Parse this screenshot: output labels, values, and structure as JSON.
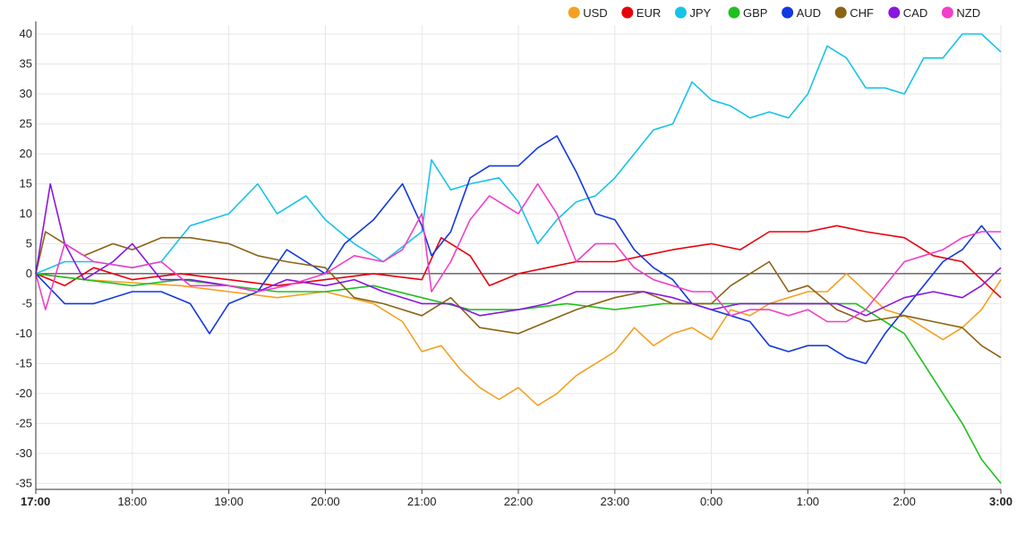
{
  "chart_data": {
    "type": "line",
    "title": "",
    "xlabel": "",
    "ylabel": "",
    "ylim": [
      -36,
      41.5
    ],
    "y_ticks": [
      40,
      35,
      30,
      25,
      20,
      15,
      10,
      5,
      0,
      -5,
      -10,
      -15,
      -20,
      -25,
      -30,
      -35
    ],
    "x_ticks": [
      {
        "label": "17:00",
        "h": 0,
        "bold": true
      },
      {
        "label": "18:00",
        "h": 1,
        "bold": false
      },
      {
        "label": "19:00",
        "h": 2,
        "bold": false
      },
      {
        "label": "20:00",
        "h": 3,
        "bold": false
      },
      {
        "label": "21:00",
        "h": 4,
        "bold": false
      },
      {
        "label": "22:00",
        "h": 5,
        "bold": false
      },
      {
        "label": "23:00",
        "h": 6,
        "bold": false
      },
      {
        "label": "0:00",
        "h": 7,
        "bold": false
      },
      {
        "label": "1:00",
        "h": 8,
        "bold": false
      },
      {
        "label": "2:00",
        "h": 9,
        "bold": false
      },
      {
        "label": "3:00",
        "h": 10,
        "bold": true
      }
    ],
    "grid": true,
    "legend_position": "top-right",
    "series": [
      {
        "name": "USD",
        "color": "#f5a020",
        "x": [
          0,
          0.5,
          1,
          1.5,
          2,
          2.5,
          3,
          3.5,
          3.8,
          4.0,
          4.2,
          4.4,
          4.6,
          4.8,
          5.0,
          5.2,
          5.4,
          5.6,
          5.8,
          6.0,
          6.2,
          6.4,
          6.6,
          6.8,
          7.0,
          7.2,
          7.4,
          7.6,
          7.8,
          8.0,
          8.2,
          8.4,
          8.6,
          8.8,
          9.0,
          9.2,
          9.4,
          9.6,
          9.8,
          10.0
        ],
        "values": [
          0,
          -1,
          -1.5,
          -2,
          -3,
          -4,
          -3,
          -5,
          -8,
          -13,
          -12,
          -16,
          -19,
          -21,
          -19,
          -22,
          -20,
          -17,
          -15,
          -13,
          -9,
          -12,
          -10,
          -9,
          -11,
          -6,
          -7,
          -5,
          -4,
          -3,
          -3,
          0,
          -3,
          -6,
          -7,
          -9,
          -11,
          -9,
          -6,
          -1
        ]
      },
      {
        "name": "EUR",
        "color": "#e8000b",
        "x": [
          0,
          0.3,
          0.6,
          1,
          1.5,
          2,
          2.5,
          3,
          3.5,
          4.0,
          4.2,
          4.5,
          4.7,
          5.0,
          5.3,
          5.6,
          6.0,
          6.3,
          6.6,
          7.0,
          7.3,
          7.6,
          8.0,
          8.3,
          8.6,
          9.0,
          9.3,
          9.6,
          9.8,
          10.0
        ],
        "values": [
          0,
          -2,
          1,
          -1,
          0,
          -1,
          -2,
          -1,
          0,
          -1,
          6,
          3,
          -2,
          0,
          1,
          2,
          2,
          3,
          4,
          5,
          4,
          7,
          7,
          8,
          7,
          6,
          3,
          2,
          -1,
          -4
        ]
      },
      {
        "name": "JPY",
        "color": "#17c3e8",
        "x": [
          0,
          0.3,
          0.6,
          1,
          1.3,
          1.6,
          2.0,
          2.3,
          2.5,
          2.8,
          3.0,
          3.3,
          3.6,
          4.0,
          4.1,
          4.3,
          4.5,
          4.8,
          5.0,
          5.2,
          5.4,
          5.6,
          5.8,
          6.0,
          6.2,
          6.4,
          6.6,
          6.8,
          7.0,
          7.2,
          7.4,
          7.6,
          7.8,
          8.0,
          8.2,
          8.4,
          8.6,
          8.8,
          9.0,
          9.2,
          9.4,
          9.6,
          9.8,
          10.0
        ],
        "values": [
          0,
          2,
          2,
          1,
          2,
          8,
          10,
          15,
          10,
          13,
          9,
          5,
          2,
          7,
          19,
          14,
          15,
          16,
          12,
          5,
          9,
          12,
          13,
          16,
          20,
          24,
          25,
          32,
          29,
          28,
          26,
          27,
          26,
          30,
          38,
          36,
          31,
          31,
          30,
          36,
          36,
          40,
          40,
          37
        ]
      },
      {
        "name": "GBP",
        "color": "#1fc11f",
        "x": [
          0,
          0.5,
          1,
          1.5,
          2,
          2.5,
          3,
          3.5,
          4.0,
          4.5,
          5.0,
          5.5,
          6.0,
          6.5,
          7.0,
          7.5,
          8.0,
          8.5,
          9.0,
          9.2,
          9.4,
          9.6,
          9.8,
          10.0
        ],
        "values": [
          0,
          -1,
          -2,
          -1,
          -2,
          -3,
          -3,
          -2,
          -4,
          -6,
          -6,
          -5,
          -6,
          -5,
          -5,
          -5,
          -5,
          -5,
          -10,
          -15,
          -20,
          -25,
          -31,
          -35
        ]
      },
      {
        "name": "AUD",
        "color": "#1238e0",
        "x": [
          0,
          0.3,
          0.6,
          1,
          1.3,
          1.6,
          1.8,
          2.0,
          2.3,
          2.6,
          2.8,
          3.0,
          3.2,
          3.5,
          3.8,
          4.0,
          4.1,
          4.3,
          4.5,
          4.7,
          5.0,
          5.2,
          5.4,
          5.6,
          5.8,
          6.0,
          6.2,
          6.4,
          6.6,
          6.8,
          7.0,
          7.2,
          7.4,
          7.6,
          7.8,
          8.0,
          8.2,
          8.4,
          8.6,
          8.8,
          9.0,
          9.2,
          9.4,
          9.6,
          9.8,
          10.0
        ],
        "values": [
          0,
          -5,
          -5,
          -3,
          -3,
          -5,
          -10,
          -5,
          -3,
          4,
          2,
          0,
          5,
          9,
          15,
          8,
          3,
          7,
          16,
          18,
          18,
          21,
          23,
          17,
          10,
          9,
          4,
          1,
          -1,
          -5,
          -6,
          -7,
          -8,
          -12,
          -13,
          -12,
          -12,
          -14,
          -15,
          -10,
          -6,
          -2,
          2,
          4,
          8,
          4
        ]
      },
      {
        "name": "CHF",
        "color": "#8c6312",
        "x": [
          0,
          0.1,
          0.3,
          0.5,
          0.8,
          1.0,
          1.3,
          1.6,
          2.0,
          2.3,
          2.6,
          3.0,
          3.3,
          3.6,
          4.0,
          4.3,
          4.6,
          5.0,
          5.3,
          5.6,
          6.0,
          6.3,
          6.6,
          7.0,
          7.2,
          7.4,
          7.6,
          7.8,
          8.0,
          8.3,
          8.6,
          9.0,
          9.3,
          9.6,
          9.8,
          10.0
        ],
        "values": [
          0,
          7,
          5,
          3,
          5,
          4,
          6,
          6,
          5,
          3,
          2,
          1,
          -4,
          -5,
          -7,
          -4,
          -9,
          -10,
          -8,
          -6,
          -4,
          -3,
          -5,
          -5,
          -2,
          0,
          2,
          -3,
          -2,
          -6,
          -8,
          -7,
          -8,
          -9,
          -12,
          -14
        ]
      },
      {
        "name": "CAD",
        "color": "#8a15e0",
        "x": [
          0,
          0.15,
          0.3,
          0.5,
          0.8,
          1.0,
          1.3,
          1.6,
          2.0,
          2.3,
          2.6,
          3.0,
          3.3,
          3.6,
          4.0,
          4.3,
          4.6,
          5.0,
          5.3,
          5.6,
          6.0,
          6.3,
          6.6,
          7.0,
          7.3,
          7.6,
          8.0,
          8.3,
          8.6,
          9.0,
          9.3,
          9.6,
          9.8,
          10.0
        ],
        "values": [
          0,
          15,
          5,
          -1,
          2,
          5,
          -1,
          -1,
          -2,
          -3,
          -1,
          -2,
          -1,
          -3,
          -5,
          -5,
          -7,
          -6,
          -5,
          -3,
          -3,
          -3,
          -4,
          -6,
          -5,
          -5,
          -5,
          -5,
          -7,
          -4,
          -3,
          -4,
          -2,
          1
        ]
      },
      {
        "name": "NZD",
        "color": "#f03fc8",
        "x": [
          0,
          0.1,
          0.3,
          0.6,
          1.0,
          1.3,
          1.6,
          2.0,
          2.3,
          2.6,
          3.0,
          3.3,
          3.6,
          3.8,
          4.0,
          4.1,
          4.3,
          4.5,
          4.7,
          5.0,
          5.2,
          5.4,
          5.6,
          5.8,
          6.0,
          6.2,
          6.4,
          6.6,
          6.8,
          7.0,
          7.2,
          7.4,
          7.6,
          7.8,
          8.0,
          8.2,
          8.4,
          8.6,
          8.8,
          9.0,
          9.2,
          9.4,
          9.6,
          9.8,
          10.0
        ],
        "values": [
          0,
          -6,
          5,
          2,
          1,
          2,
          -2,
          -2,
          -3,
          -2,
          0,
          3,
          2,
          4,
          10,
          -3,
          2,
          9,
          13,
          10,
          15,
          10,
          2,
          5,
          5,
          1,
          -1,
          -2,
          -3,
          -3,
          -7,
          -6,
          -6,
          -7,
          -6,
          -8,
          -8,
          -6,
          -2,
          2,
          3,
          4,
          6,
          7,
          7
        ]
      }
    ]
  }
}
